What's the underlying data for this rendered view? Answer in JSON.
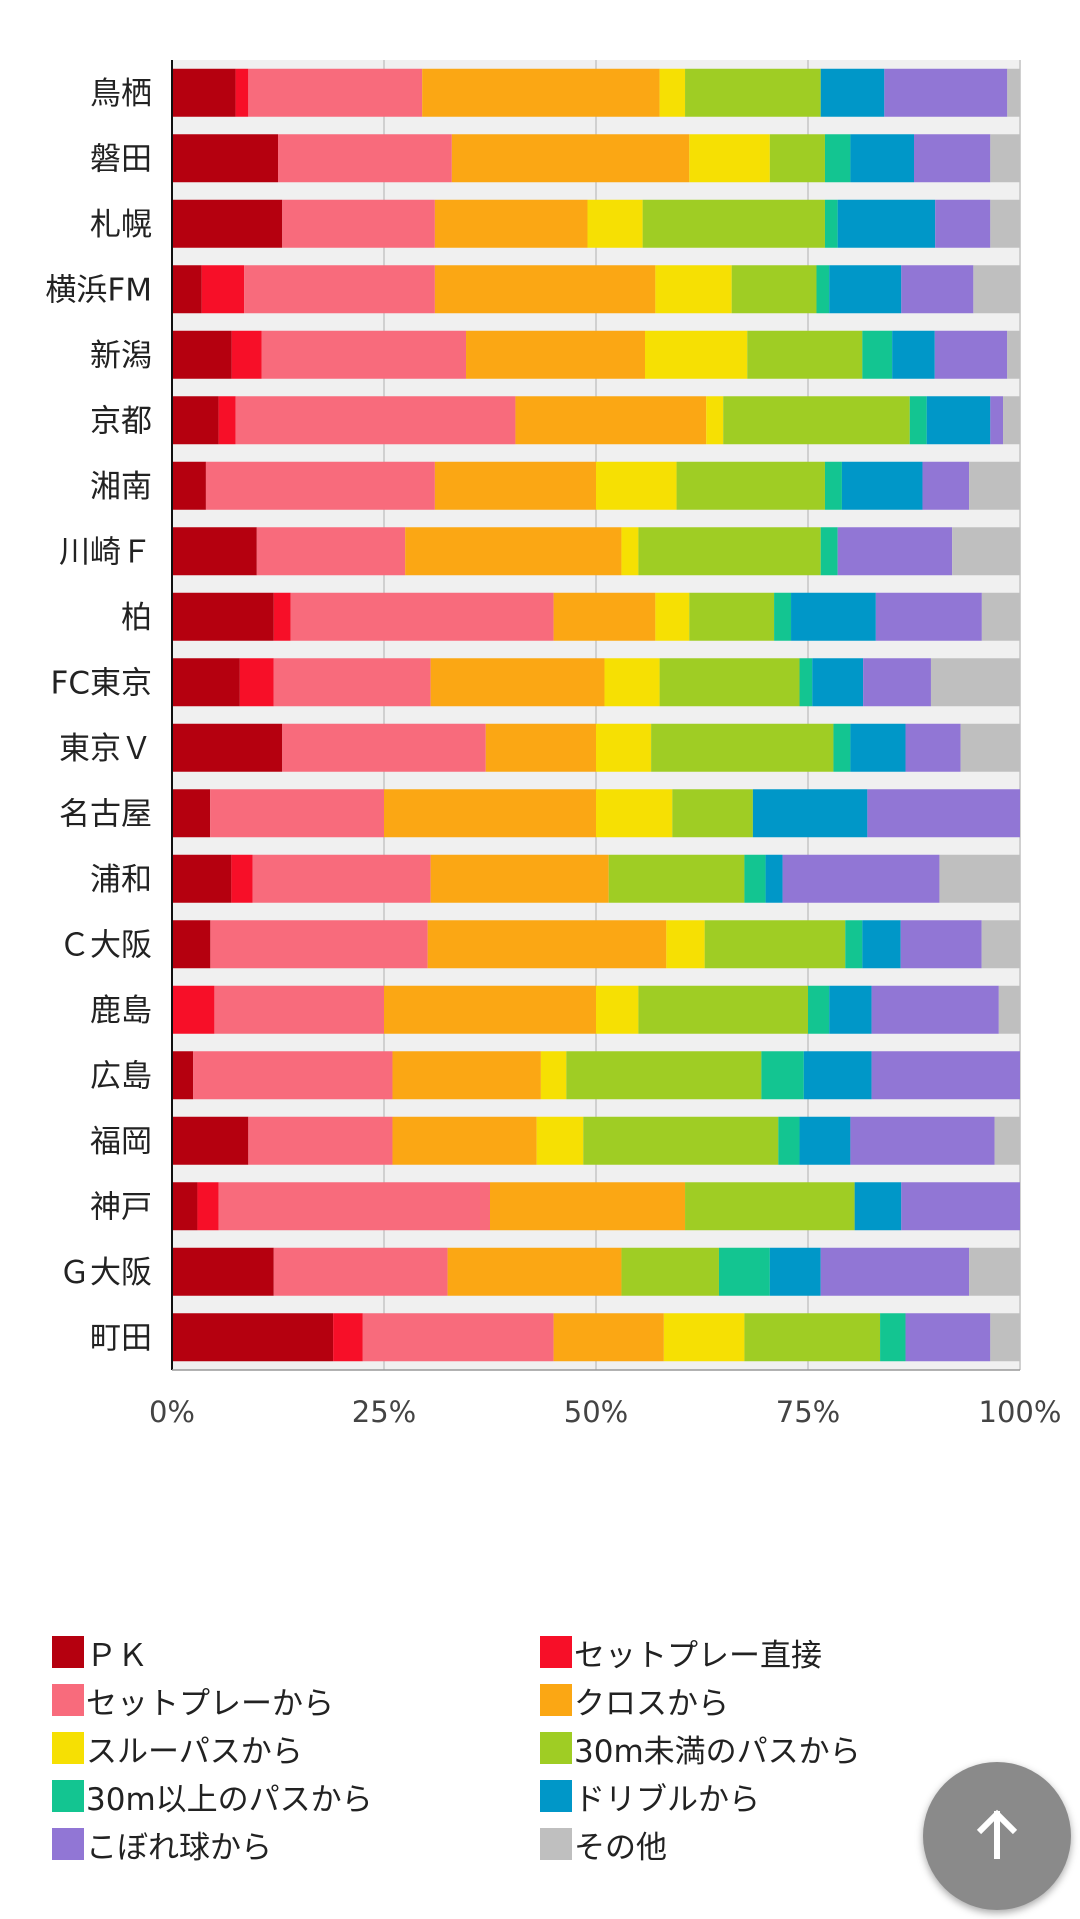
{
  "chart_data": {
    "type": "bar",
    "orientation": "horizontal",
    "stacked": "percent",
    "categories": [
      "鳥栖",
      "磐田",
      "札幌",
      "横浜FM",
      "新潟",
      "京都",
      "湘南",
      "川崎Ｆ",
      "柏",
      "FC東京",
      "東京Ｖ",
      "名古屋",
      "浦和",
      "Ｃ大阪",
      "鹿島",
      "広島",
      "福岡",
      "神戸",
      "Ｇ大阪",
      "町田"
    ],
    "series": [
      {
        "name": "ＰＫ",
        "color": "#b5000f",
        "values": [
          7.5,
          12.5,
          13.0,
          3.5,
          7.0,
          5.5,
          4.0,
          10.0,
          12.0,
          8.0,
          13.0,
          4.5,
          7.0,
          4.5,
          0,
          2.5,
          9.0,
          3.0,
          12.0,
          19.0
        ]
      },
      {
        "name": "セットプレー直接",
        "color": "#f70f28",
        "values": [
          1.5,
          0,
          0,
          5.0,
          3.5,
          2.0,
          0,
          0,
          2.0,
          4.0,
          0,
          0,
          2.5,
          0,
          5.0,
          0,
          0,
          2.5,
          0,
          3.5
        ]
      },
      {
        "name": "セットプレーから",
        "color": "#f86b7c",
        "values": [
          20.5,
          20.5,
          18.0,
          22.5,
          24.0,
          33.0,
          27.0,
          17.5,
          31.0,
          18.5,
          24.0,
          20.5,
          21.0,
          25.5,
          20.0,
          23.5,
          17.0,
          32.0,
          20.5,
          22.5
        ]
      },
      {
        "name": "クロスから",
        "color": "#fba714",
        "values": [
          28.0,
          28.0,
          18.0,
          26.0,
          21.0,
          22.5,
          19.0,
          25.5,
          12.0,
          20.5,
          13.0,
          25.0,
          21.0,
          28.0,
          25.0,
          17.5,
          17.0,
          23.0,
          20.5,
          13.0
        ]
      },
      {
        "name": "スルーパスから",
        "color": "#f6e003",
        "values": [
          3.0,
          9.5,
          6.5,
          9.0,
          12.0,
          2.0,
          9.5,
          2.0,
          4.0,
          6.5,
          6.5,
          9.0,
          0,
          4.5,
          5.0,
          3.0,
          5.5,
          0,
          0,
          9.5
        ]
      },
      {
        "name": "30m未満のパスから",
        "color": "#9fcd24",
        "values": [
          16.0,
          6.5,
          21.5,
          10.0,
          13.5,
          22.0,
          17.5,
          21.5,
          10.0,
          16.5,
          21.5,
          9.5,
          16.0,
          16.5,
          20.0,
          23.0,
          23.0,
          20.0,
          11.5,
          16.0
        ]
      },
      {
        "name": "30m以上のパスから",
        "color": "#13c591",
        "values": [
          0,
          3.0,
          1.5,
          1.5,
          3.5,
          2.0,
          2.0,
          2.0,
          2.0,
          1.5,
          2.0,
          0,
          2.5,
          2.0,
          2.5,
          5.0,
          2.5,
          0,
          6.0,
          3.0
        ]
      },
      {
        "name": "ドリブルから",
        "color": "#0097c8",
        "values": [
          7.5,
          7.5,
          11.5,
          8.5,
          5.0,
          7.5,
          9.5,
          0,
          10.0,
          6.0,
          6.5,
          13.5,
          2.0,
          4.5,
          5.0,
          8.0,
          6.0,
          5.5,
          6.0,
          0
        ]
      },
      {
        "name": "こぼれ球から",
        "color": "#9176d5",
        "values": [
          14.5,
          9.0,
          6.5,
          8.5,
          8.5,
          1.5,
          5.5,
          13.5,
          12.5,
          8.0,
          6.5,
          18.0,
          18.5,
          9.5,
          15.0,
          17.5,
          17.0,
          14.0,
          17.5,
          10.0
        ]
      },
      {
        "name": "その他",
        "color": "#bfbfbf",
        "values": [
          1.5,
          3.5,
          3.5,
          5.5,
          1.5,
          2.0,
          6.0,
          8.0,
          4.5,
          10.5,
          7.0,
          0,
          9.5,
          4.5,
          2.5,
          0,
          3.0,
          0,
          6.0,
          3.5
        ]
      }
    ],
    "xlim": [
      0,
      100
    ],
    "xticks": [
      "0%",
      "25%",
      "50%",
      "75%",
      "100%"
    ],
    "title": "",
    "xlabel": "",
    "ylabel": "",
    "grid": true,
    "legend_position": "bottom"
  },
  "ui": {
    "back_to_top_icon": "arrow-up-icon"
  }
}
